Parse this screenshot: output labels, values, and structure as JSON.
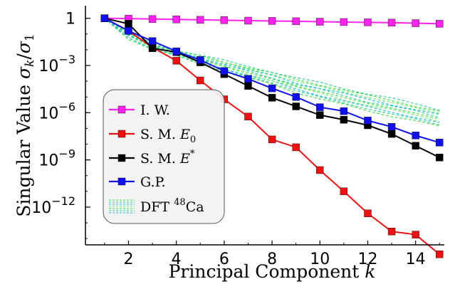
{
  "chart_data": {
    "type": "line",
    "xlabel": "Principal Component k",
    "ylabel": "Singular Value σk/σ1",
    "xlim": [
      0.2,
      15.2
    ],
    "ylim_log10": [
      -14.4,
      0.8
    ],
    "y_scale": "log",
    "x_ticks": [
      "2",
      "4",
      "6",
      "8",
      "10",
      "12",
      "14"
    ],
    "x_tick_values": [
      2,
      4,
      6,
      8,
      10,
      12,
      14
    ],
    "y_ticks": [
      "1",
      "10^-3",
      "10^-6",
      "10^-9",
      "10^-12"
    ],
    "y_tick_log10": [
      0,
      -3,
      -6,
      -9,
      -12
    ],
    "grid": false,
    "legend_position": "bottom-left",
    "x": [
      1,
      2,
      3,
      4,
      5,
      6,
      7,
      8,
      9,
      10,
      11,
      12,
      13,
      14,
      15
    ],
    "series": [
      {
        "name": "I. W.",
        "color": "#ff22ee",
        "marker": "square",
        "log10_values": [
          0,
          -0.02,
          -0.05,
          -0.07,
          -0.1,
          -0.12,
          -0.15,
          -0.17,
          -0.19,
          -0.22,
          -0.24,
          -0.26,
          -0.28,
          -0.31,
          -0.35
        ]
      },
      {
        "name": "S. M. E0",
        "color": "#ee1111",
        "marker": "square",
        "log10_values": [
          0,
          -0.8,
          -1.85,
          -2.7,
          -3.95,
          -5.15,
          -6.25,
          -7.7,
          -8.2,
          -9.65,
          -11.0,
          -12.4,
          -13.55,
          -13.75,
          -15.0
        ]
      },
      {
        "name": "S. M. E*",
        "color": "#000000",
        "marker": "square",
        "log10_values": [
          0,
          -0.35,
          -1.9,
          -2.15,
          -2.8,
          -3.55,
          -4.3,
          -5.05,
          -5.6,
          -6.15,
          -6.45,
          -6.8,
          -7.35,
          -8.1,
          -8.85
        ]
      },
      {
        "name": "G.P.",
        "color": "#1111ee",
        "marker": "square",
        "log10_values": [
          0,
          -0.8,
          -1.45,
          -2.1,
          -2.65,
          -3.35,
          -3.85,
          -4.45,
          -5.0,
          -5.65,
          -5.9,
          -6.5,
          -6.9,
          -7.45,
          -7.9
        ]
      },
      {
        "name": "DFT 48Ca",
        "colors": [
          "#44dd44",
          "#33cc99",
          "#22bbdd",
          "#66ee66"
        ],
        "marker": "none",
        "style": "dashed",
        "ensemble_lower_log10": [
          0,
          -1.3,
          -2.0,
          -2.4,
          -2.9,
          -3.3,
          -3.8,
          -4.2,
          -4.7,
          -5.1,
          -5.5,
          -5.9,
          -6.2,
          -6.5,
          -6.9
        ],
        "ensemble_upper_log10": [
          0,
          -0.85,
          -1.6,
          -2.05,
          -2.35,
          -2.7,
          -3.05,
          -3.4,
          -3.8,
          -4.1,
          -4.45,
          -4.8,
          -5.1,
          -5.45,
          -5.8
        ],
        "ensemble_count": 10
      }
    ],
    "legend": [
      {
        "label_main": "I. W.",
        "label_super": "",
        "label_tail": ""
      },
      {
        "label_main": "S. M. E",
        "label_super": "",
        "label_sub": "0",
        "label_tail": ""
      },
      {
        "label_main": "S. M. E",
        "label_super": "*",
        "label_tail": ""
      },
      {
        "label_main": "G.P.",
        "label_super": "",
        "label_tail": ""
      },
      {
        "label_main": "DFT ",
        "label_super": "48",
        "label_tail": "Ca"
      }
    ]
  }
}
